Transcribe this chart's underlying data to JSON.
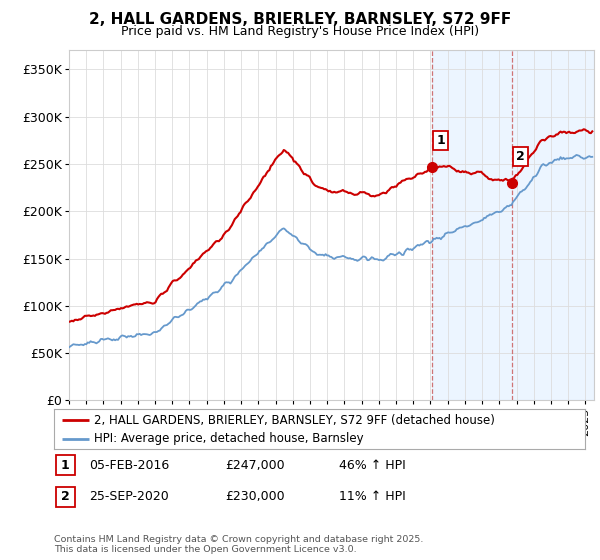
{
  "title": "2, HALL GARDENS, BRIERLEY, BARNSLEY, S72 9FF",
  "subtitle": "Price paid vs. HM Land Registry's House Price Index (HPI)",
  "ylabel_ticks": [
    "£0",
    "£50K",
    "£100K",
    "£150K",
    "£200K",
    "£250K",
    "£300K",
    "£350K"
  ],
  "ytick_values": [
    0,
    50000,
    100000,
    150000,
    200000,
    250000,
    300000,
    350000
  ],
  "ylim": [
    0,
    370000
  ],
  "xlim_start": 1995.0,
  "xlim_end": 2025.5,
  "legend_line1": "2, HALL GARDENS, BRIERLEY, BARNSLEY, S72 9FF (detached house)",
  "legend_line2": "HPI: Average price, detached house, Barnsley",
  "sale1_date": "05-FEB-2016",
  "sale1_price": "£247,000",
  "sale1_hpi": "46% ↑ HPI",
  "sale2_date": "25-SEP-2020",
  "sale2_price": "£230,000",
  "sale2_hpi": "11% ↑ HPI",
  "footer": "Contains HM Land Registry data © Crown copyright and database right 2025.\nThis data is licensed under the Open Government Licence v3.0.",
  "red_color": "#cc0000",
  "blue_color": "#6699cc",
  "blue_shade": "#ddeeff",
  "sale1_x": 2016.09,
  "sale1_y": 247000,
  "sale2_x": 2020.73,
  "sale2_y": 230000,
  "bg_shade_x1": 2016.09,
  "bg_shade_x2": 2025.5
}
